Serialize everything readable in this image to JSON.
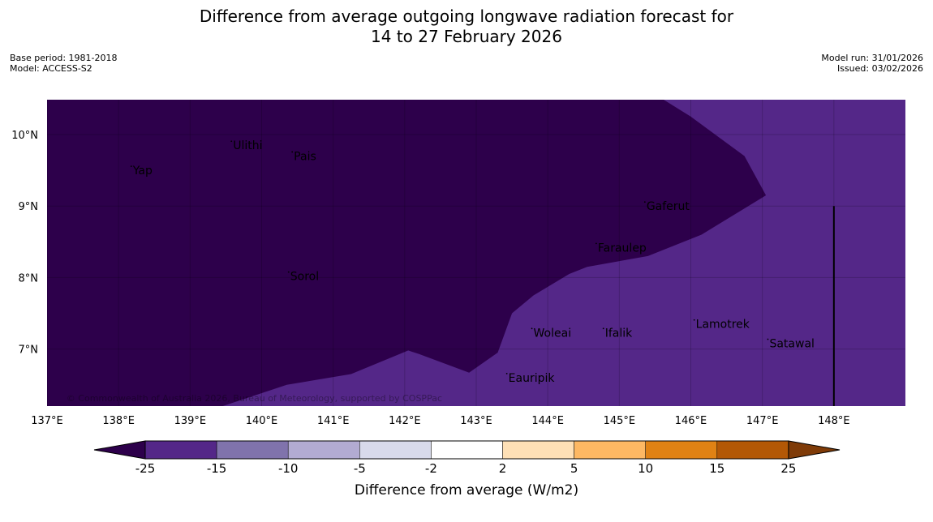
{
  "header": {
    "title_line1": "Difference from average outgoing longwave radiation forecast for",
    "title_line2": "14 to 27 February 2026",
    "base_period": "Base period: 1981-2018",
    "model": "Model: ACCESS-S2",
    "model_run": "Model run: 31/01/2026",
    "issued": "Issued: 03/02/2026"
  },
  "map": {
    "lon_range": [
      137,
      149
    ],
    "lat_range": [
      6.2,
      10.5
    ],
    "lon_ticks": [
      {
        "value": 137,
        "label": "137°E"
      },
      {
        "value": 138,
        "label": "138°E"
      },
      {
        "value": 139,
        "label": "139°E"
      },
      {
        "value": 140,
        "label": "140°E"
      },
      {
        "value": 141,
        "label": "141°E"
      },
      {
        "value": 142,
        "label": "142°E"
      },
      {
        "value": 143,
        "label": "143°E"
      },
      {
        "value": 144,
        "label": "144°E"
      },
      {
        "value": 145,
        "label": "145°E"
      },
      {
        "value": 146,
        "label": "146°E"
      },
      {
        "value": 147,
        "label": "147°E"
      },
      {
        "value": 148,
        "label": "148°E"
      }
    ],
    "lat_ticks": [
      {
        "value": 10,
        "label": "10°N"
      },
      {
        "value": 9,
        "label": "9°N"
      },
      {
        "value": 8,
        "label": "8°N"
      },
      {
        "value": 7,
        "label": "7°N"
      }
    ],
    "colors": {
      "below_minus25": "#2d004b",
      "minus25_to_minus15": "#542788",
      "grid": "#000000"
    },
    "boundary_lonlat": [
      [
        145.6,
        10.5
      ],
      [
        146.0,
        10.25
      ],
      [
        146.75,
        9.7
      ],
      [
        147.05,
        9.15
      ],
      [
        146.15,
        8.6
      ],
      [
        145.4,
        8.3
      ],
      [
        144.55,
        8.15
      ],
      [
        144.3,
        8.05
      ],
      [
        143.8,
        7.75
      ],
      [
        143.5,
        7.5
      ],
      [
        143.3,
        6.95
      ],
      [
        142.9,
        6.67
      ],
      [
        142.2,
        6.93
      ],
      [
        142.05,
        6.98
      ],
      [
        141.25,
        6.65
      ],
      [
        140.35,
        6.5
      ],
      [
        139.45,
        6.2
      ]
    ],
    "locations": [
      {
        "name": "Ulithi",
        "lon": 139.6,
        "lat": 9.85
      },
      {
        "name": "Pais",
        "lon": 140.45,
        "lat": 9.7
      },
      {
        "name": "Yap",
        "lon": 138.2,
        "lat": 9.5
      },
      {
        "name": "Gaferut",
        "lon": 145.38,
        "lat": 9.0
      },
      {
        "name": "Faraulep",
        "lon": 144.7,
        "lat": 8.42
      },
      {
        "name": "Sorol",
        "lon": 140.4,
        "lat": 8.02
      },
      {
        "name": "Lamotrek",
        "lon": 146.07,
        "lat": 7.35
      },
      {
        "name": "Woleai",
        "lon": 143.8,
        "lat": 7.23
      },
      {
        "name": "Ifalik",
        "lon": 144.8,
        "lat": 7.23
      },
      {
        "name": "Satawal",
        "lon": 147.1,
        "lat": 7.08
      },
      {
        "name": "Eauripik",
        "lon": 143.45,
        "lat": 6.6
      }
    ],
    "marker_line": {
      "lon": 148.0,
      "lat_top": 9.0
    },
    "copyright": "© Commonwealth of Australia 2026, Bureau of Meteorology, supported by COSPPac"
  },
  "legend": {
    "label": "Difference from average (W/m2)",
    "low_extend_color": "#2d004b",
    "high_extend_color": "#7f3b08",
    "bins": [
      {
        "from": "-25",
        "to": "-15",
        "color": "#542788"
      },
      {
        "from": "-15",
        "to": "-10",
        "color": "#8073ac"
      },
      {
        "from": "-10",
        "to": "-5",
        "color": "#b2abd2"
      },
      {
        "from": "-5",
        "to": "-2",
        "color": "#d8daeb"
      },
      {
        "from": "-2",
        "to": "2",
        "color": "#ffffff"
      },
      {
        "from": "2",
        "to": "5",
        "color": "#fee0b6"
      },
      {
        "from": "5",
        "to": "10",
        "color": "#fdb863"
      },
      {
        "from": "10",
        "to": "15",
        "color": "#e08214"
      },
      {
        "from": "15",
        "to": "25",
        "color": "#b35806"
      }
    ],
    "tick_labels": [
      "-25",
      "-15",
      "-10",
      "-5",
      "-2",
      "2",
      "5",
      "10",
      "15",
      "25"
    ]
  }
}
